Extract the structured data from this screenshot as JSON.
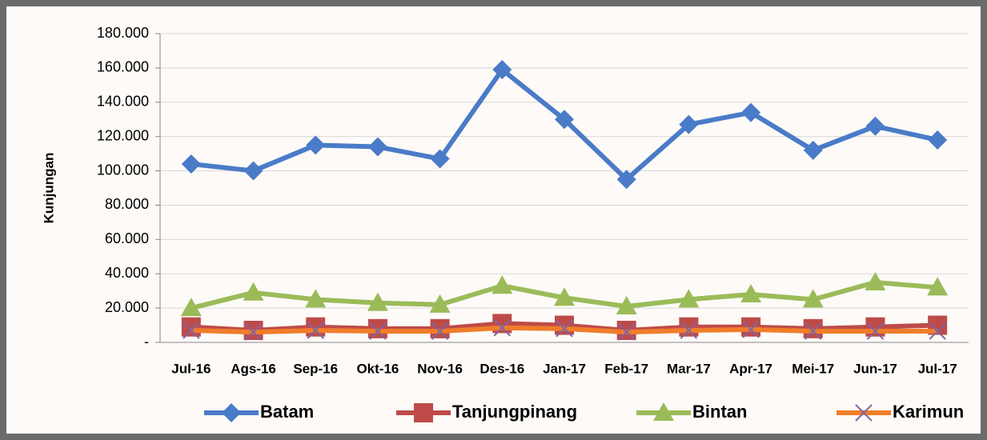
{
  "chart_data": {
    "type": "line",
    "y_label": "Kunjungan",
    "categories": [
      "Jul-16",
      "Ags-16",
      "Sep-16",
      "Okt-16",
      "Nov-16",
      "Des-16",
      "Jan-17",
      "Feb-17",
      "Mar-17",
      "Apr-17",
      "Mei-17",
      "Jun-17",
      "Jul-17"
    ],
    "series": [
      {
        "name": "Batam",
        "color": "#4a7bc8",
        "marker": "diamond",
        "values": [
          104000,
          100000,
          115000,
          114000,
          107000,
          159000,
          130000,
          95000,
          127000,
          134000,
          112000,
          126000,
          118000
        ]
      },
      {
        "name": "Tanjungpinang",
        "color": "#be4b48",
        "marker": "square",
        "values": [
          9000,
          7000,
          9000,
          8000,
          8000,
          11000,
          10000,
          7000,
          9000,
          9000,
          8000,
          9000,
          10000
        ]
      },
      {
        "name": "Bintan",
        "color": "#9bbb59",
        "marker": "triangle",
        "values": [
          20000,
          29000,
          25000,
          23000,
          22000,
          33000,
          26000,
          21000,
          25000,
          28000,
          25000,
          35000,
          32000
        ]
      },
      {
        "name": "Karimun",
        "color": "#f07d2a",
        "marker": "x",
        "marker_color": "#8064a2",
        "values": [
          7000,
          6000,
          7000,
          6500,
          6500,
          8500,
          8000,
          6000,
          7000,
          7500,
          6500,
          6500,
          6500
        ]
      }
    ],
    "ylim": [
      0,
      180000
    ],
    "yticks": [
      {
        "value": 0,
        "label": "-"
      },
      {
        "value": 20000,
        "label": "20.000"
      },
      {
        "value": 40000,
        "label": "40.000"
      },
      {
        "value": 60000,
        "label": "60.000"
      },
      {
        "value": 80000,
        "label": "80.000"
      },
      {
        "value": 100000,
        "label": "100.000"
      },
      {
        "value": 120000,
        "label": "120.000"
      },
      {
        "value": 140000,
        "label": "140.000"
      },
      {
        "value": 160000,
        "label": "160.000"
      },
      {
        "value": 180000,
        "label": "180.000"
      }
    ],
    "grid": true,
    "legend": "bottom"
  }
}
